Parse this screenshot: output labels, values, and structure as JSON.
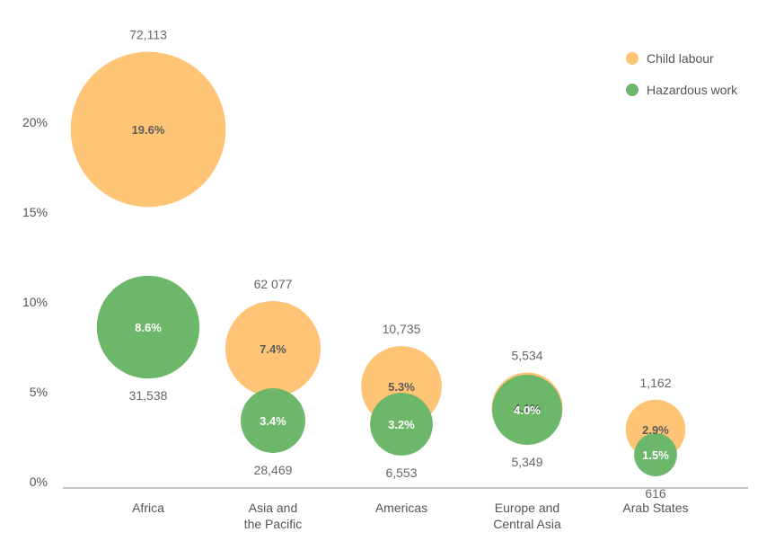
{
  "chart_data": {
    "type": "bubble",
    "title": "",
    "xlabel": "",
    "ylabel": "",
    "ylim": [
      0,
      20
    ],
    "y_ticks": [
      "0%",
      "5%",
      "10%",
      "15%",
      "20%"
    ],
    "categories": [
      [
        "Africa"
      ],
      [
        "Asia and",
        "the Pacific"
      ],
      [
        "Americas"
      ],
      [
        "Europe and",
        "Central Asia"
      ],
      [
        "Arab States"
      ]
    ],
    "legend": {
      "position": "top-right"
    },
    "series": [
      {
        "name": "Child labour",
        "color": "#FFC475",
        "values": [
          19.6,
          7.4,
          5.3,
          4.1,
          2.9
        ],
        "value_labels": [
          "19.6%",
          "7.4%",
          "5.3%",
          "4.1%",
          "2.9%"
        ],
        "counts": [
          "72,113",
          "62 077",
          "10,735",
          "5,534",
          "1,162"
        ]
      },
      {
        "name": "Hazardous work",
        "color": "#6DB76A",
        "values": [
          8.6,
          3.4,
          3.2,
          4.0,
          1.5
        ],
        "value_labels": [
          "8.6%",
          "3.4%",
          "3.2%",
          "4.0%",
          "1.5%"
        ],
        "counts": [
          "31,538",
          "28,469",
          "6,553",
          "5,349",
          "616"
        ]
      }
    ]
  }
}
